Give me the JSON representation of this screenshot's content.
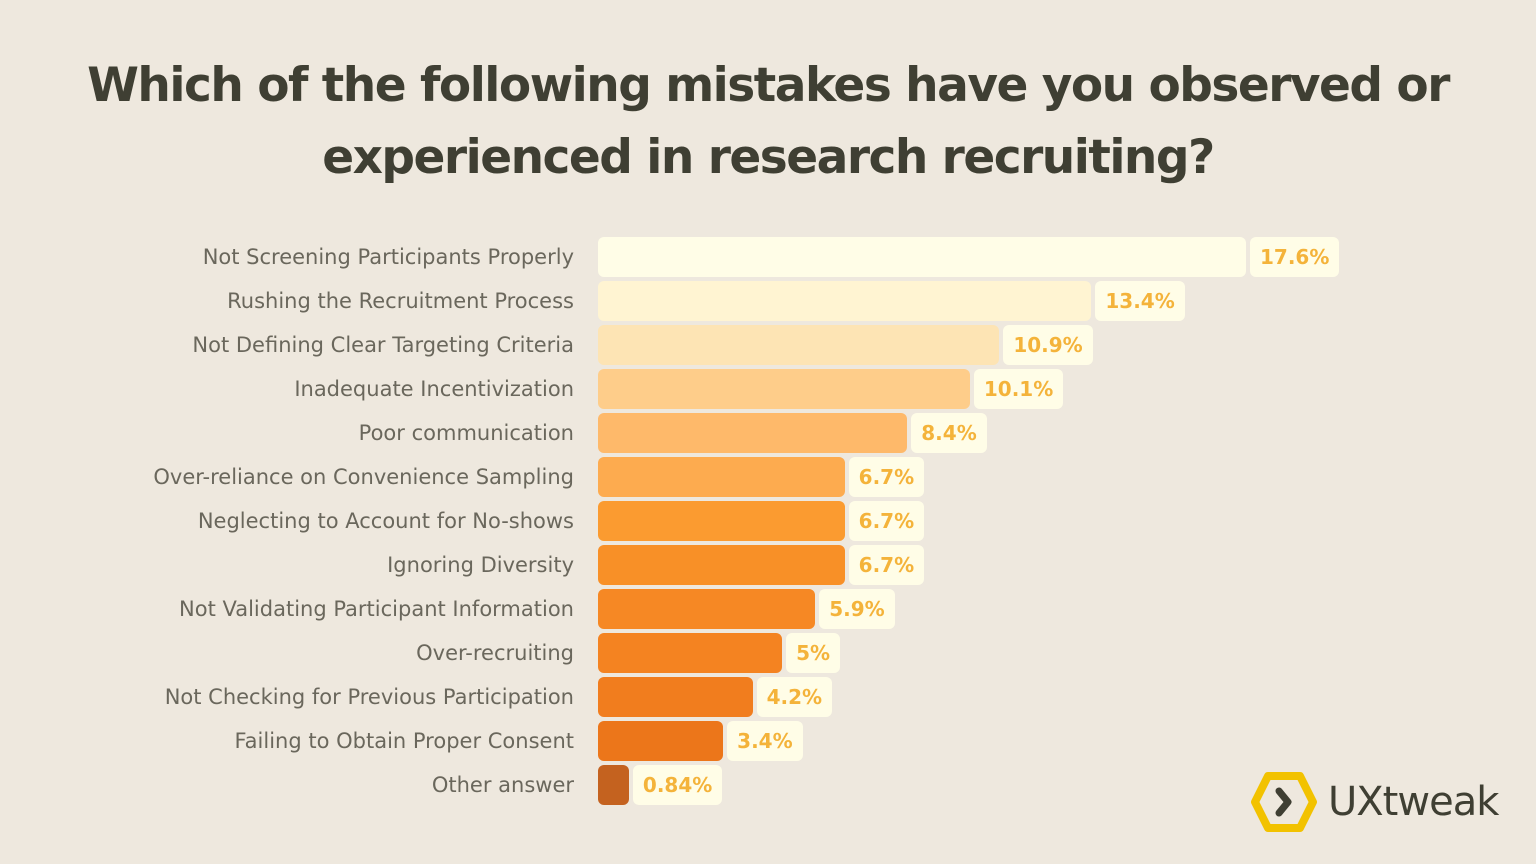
{
  "chart_data": {
    "type": "bar",
    "orientation": "horizontal",
    "title": "Which of the following mistakes have you observed or experienced in research recruiting?",
    "categories": [
      "Not Screening Participants Properly",
      "Rushing the Recruitment Process",
      "Not Defining Clear Targeting Criteria",
      "Inadequate Incentivization",
      "Poor communication",
      "Over-reliance on Convenience Sampling",
      "Neglecting to Account for No-shows",
      "Ignoring Diversity",
      "Not Validating Participant Information",
      "Over-recruiting",
      "Not Checking for Previous Participation",
      "Failing to Obtain Proper Consent",
      "Other answer"
    ],
    "values": [
      17.6,
      13.4,
      10.9,
      10.1,
      8.4,
      6.7,
      6.7,
      6.7,
      5.9,
      5,
      4.2,
      3.4,
      0.84
    ],
    "data_labels": [
      "17.6%",
      "13.4%",
      "10.9%",
      "10.1%",
      "8.4%",
      "6.7%",
      "6.7%",
      "6.7%",
      "5.9%",
      "5%",
      "4.2%",
      "3.4%",
      "0.84%"
    ],
    "colors": [
      "#FFFDE7",
      "#FFF4D2",
      "#FDE4B4",
      "#FECD8A",
      "#FEB96A",
      "#FDAB4F",
      "#FB9B30",
      "#F89027",
      "#F68824",
      "#F48321",
      "#F17D1E",
      "#EC761A",
      "#C4621F"
    ],
    "label_color": "#F4B33A",
    "grid": false,
    "legend": "none"
  },
  "logo": {
    "text": "UXtweak",
    "color": "#F2C200"
  }
}
